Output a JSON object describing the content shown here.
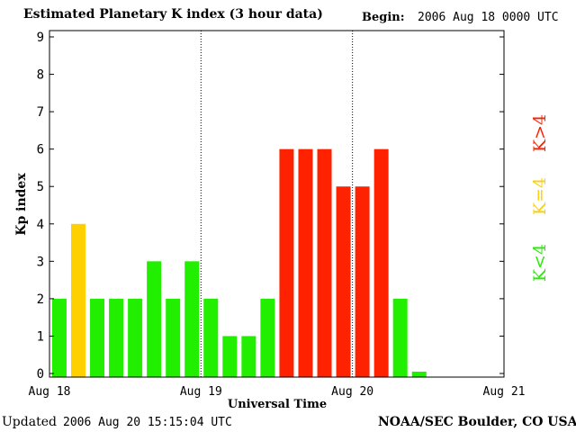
{
  "header": {
    "title": "Estimated Planetary K index (3 hour data)",
    "begin_label": "Begin:",
    "begin_value": "2006 Aug 18 0000 UTC"
  },
  "footer": {
    "updated_label": "Updated",
    "updated_value": "2006 Aug 20 15:15:04 UTC",
    "credit": "NOAA/SEC Boulder, CO USA"
  },
  "legend": [
    {
      "label": "K>4",
      "color": "#ff2200"
    },
    {
      "label": "K=4",
      "color": "#ffd000"
    },
    {
      "label": "K<4",
      "color": "#22ee00"
    }
  ],
  "chart_data": {
    "type": "bar",
    "xlabel": "Universal Time",
    "ylabel": "Kp index",
    "ylim": [
      0,
      9
    ],
    "yticks": [
      "0",
      "1",
      "2",
      "3",
      "4",
      "5",
      "6",
      "7",
      "8",
      "9"
    ],
    "xticks": [
      "Aug 18",
      "Aug 19",
      "Aug 20",
      "Aug 21"
    ],
    "day_dividers": [
      "Aug 19",
      "Aug 20"
    ],
    "slots": 24,
    "values": [
      2,
      4,
      2,
      2,
      2,
      3,
      2,
      3,
      2,
      1,
      1,
      2,
      6,
      6,
      6,
      5,
      5,
      6,
      2,
      0.05
    ],
    "colors": {
      "below4": "#22ee00",
      "equal4": "#ffd000",
      "above4": "#ff2200"
    },
    "grid": false
  }
}
